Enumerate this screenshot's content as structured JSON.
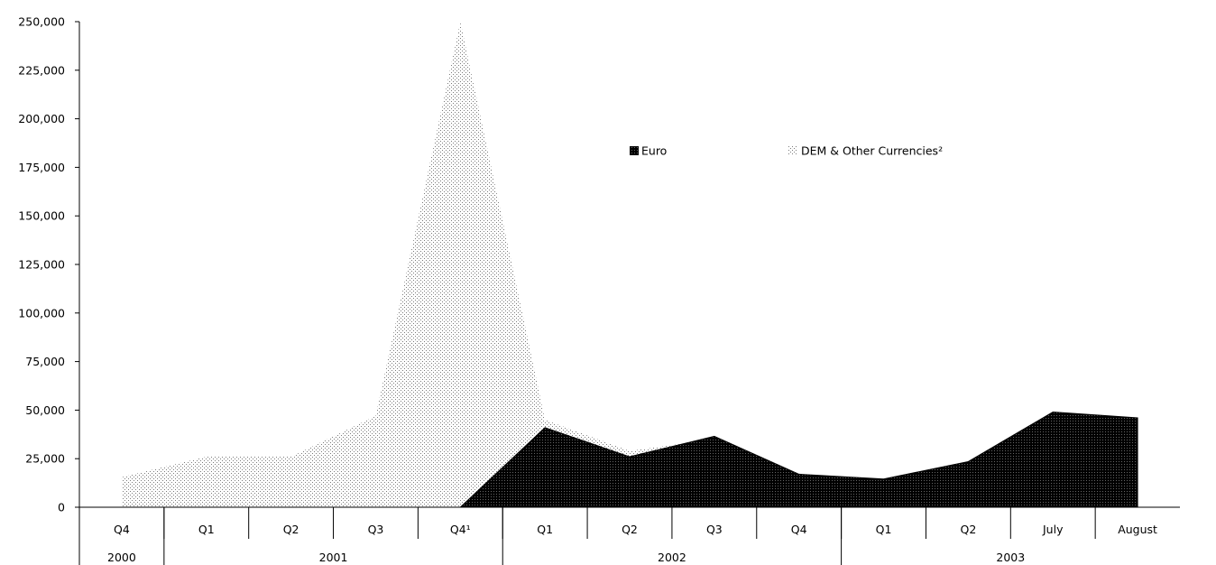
{
  "chart_data": {
    "type": "area",
    "categories": [
      "Q4",
      "Q1",
      "Q2",
      "Q3",
      "Q4¹",
      "Q1",
      "Q2",
      "Q3",
      "Q4",
      "Q1",
      "Q2",
      "July",
      "August"
    ],
    "year_groups": [
      {
        "label": "2000",
        "span": 1
      },
      {
        "label": "2001",
        "span": 4
      },
      {
        "label": "2002",
        "span": 4
      },
      {
        "label": "2003",
        "span": 4
      }
    ],
    "series": [
      {
        "name": "Euro",
        "values": [
          0,
          0,
          0,
          0,
          0,
          41000,
          26000,
          36500,
          17000,
          14500,
          23500,
          49000,
          46000
        ],
        "color": "#141414"
      },
      {
        "name": "DEM & Other Currencies²",
        "values": [
          15500,
          26000,
          26000,
          47000,
          250000,
          45000,
          29000,
          35000,
          16000,
          13500,
          22000,
          45000,
          43000
        ],
        "color": "#d9d9d9"
      }
    ],
    "ylim": [
      0,
      250000
    ],
    "yticks": [
      "0",
      "25,000",
      "50,000",
      "75,000",
      "100,000",
      "125,000",
      "150,000",
      "175,000",
      "200,000",
      "225,000",
      "250,000"
    ],
    "legend_placement": "top-center",
    "grid": false,
    "title": "",
    "xlabel": "",
    "ylabel": ""
  }
}
